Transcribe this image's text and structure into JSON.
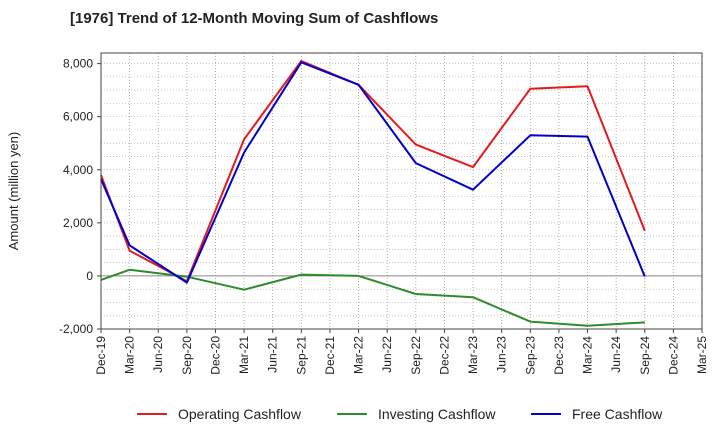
{
  "chart_data": {
    "type": "line",
    "title": "[1976]  Trend of 12-Month Moving Sum of Cashflows",
    "xlabel": "",
    "ylabel": "Amount (million yen)",
    "x": [
      "Dec-19",
      "Mar-20",
      "Jun-20",
      "Sep-20",
      "Dec-20",
      "Mar-21",
      "Jun-21",
      "Sep-21",
      "Dec-21",
      "Mar-22",
      "Jun-22",
      "Sep-22",
      "Dec-22",
      "Mar-23",
      "Jun-23",
      "Sep-23",
      "Dec-23",
      "Mar-24",
      "Jun-24",
      "Sep-24",
      "Dec-24",
      "Mar-25"
    ],
    "ylim": [
      -2000,
      8400
    ],
    "yticks": [
      -2000,
      0,
      2000,
      4000,
      6000,
      8000
    ],
    "ytick_labels": [
      "-2,000",
      "0",
      "2,000",
      "4,000",
      "6,000",
      "8,000"
    ],
    "grid": true,
    "legend_position": "bottom",
    "series": [
      {
        "name": "Operating Cashflow",
        "color": "#e41a1c",
        "values": [
          3800,
          950,
          null,
          -200,
          null,
          5150,
          null,
          8100,
          null,
          7200,
          null,
          4950,
          null,
          4100,
          null,
          7050,
          null,
          7150,
          null,
          1700,
          null,
          null
        ]
      },
      {
        "name": "Investing Cashflow",
        "color": "#2e8b2e",
        "values": [
          -150,
          230,
          null,
          -30,
          null,
          -520,
          null,
          50,
          null,
          0,
          null,
          -680,
          null,
          -800,
          null,
          -1720,
          null,
          -1880,
          null,
          -1750,
          null,
          null
        ]
      },
      {
        "name": "Free Cashflow",
        "color": "#0000cc",
        "values": [
          3650,
          1150,
          null,
          -250,
          null,
          4650,
          null,
          8050,
          null,
          7200,
          null,
          4250,
          null,
          3250,
          null,
          5300,
          null,
          5250,
          null,
          -20,
          null,
          null
        ]
      }
    ]
  }
}
